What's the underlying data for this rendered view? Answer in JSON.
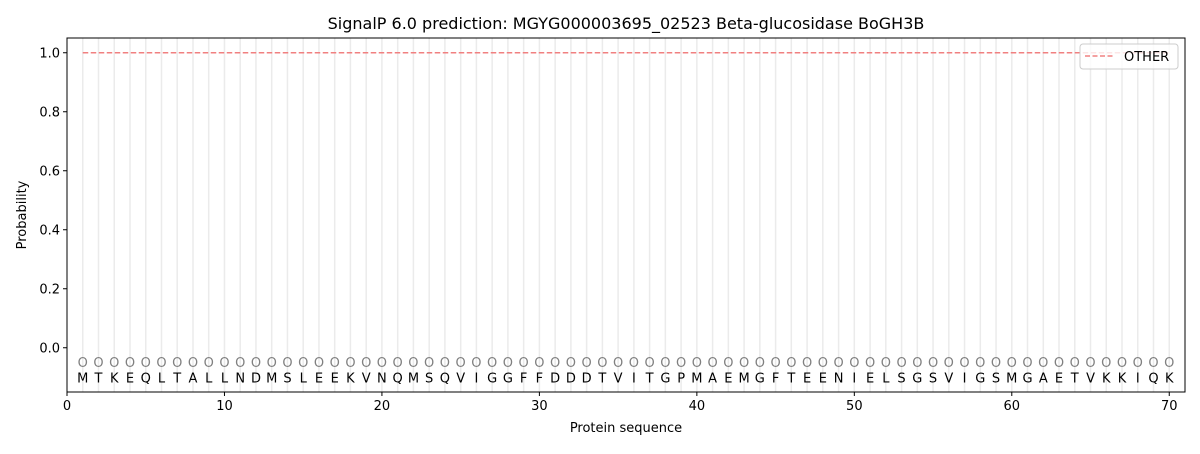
{
  "chart_data": {
    "type": "line",
    "title": "SignalP 6.0 prediction: MGYG000003695_02523 Beta-glucosidase BoGH3B",
    "xlabel": "Protein sequence",
    "ylabel": "Probability",
    "xlim": [
      0,
      71
    ],
    "ylim": [
      -0.15,
      1.05
    ],
    "xticks": [
      0,
      10,
      20,
      30,
      40,
      50,
      60,
      70
    ],
    "yticks": [
      0.0,
      0.2,
      0.4,
      0.6,
      0.8,
      1.0
    ],
    "ytick_labels": [
      "0.0",
      "0.2",
      "0.4",
      "0.6",
      "0.8",
      "1.0"
    ],
    "grid": "vertical per residue",
    "legend_placement": "top-right",
    "sequence": [
      "M",
      "T",
      "K",
      "E",
      "Q",
      "L",
      "T",
      "A",
      "L",
      "L",
      "N",
      "D",
      "M",
      "S",
      "L",
      "E",
      "E",
      "K",
      "V",
      "N",
      "Q",
      "M",
      "S",
      "Q",
      "V",
      "I",
      "G",
      "G",
      "F",
      "F",
      "D",
      "D",
      "D",
      "T",
      "V",
      "I",
      "T",
      "G",
      "P",
      "M",
      "A",
      "E",
      "M",
      "G",
      "F",
      "T",
      "E",
      "E",
      "N",
      "I",
      "E",
      "L",
      "S",
      "G",
      "S",
      "V",
      "I",
      "G",
      "S",
      "M",
      "G",
      "A",
      "E",
      "T",
      "V",
      "K",
      "K",
      "I",
      "Q",
      "K"
    ],
    "region_label": "O",
    "region_marker_y": -0.05,
    "series": [
      {
        "name": "OTHER",
        "color": "#f08080",
        "style": "dashed",
        "x_start": 1,
        "x_end": 70,
        "value": 1.0
      }
    ]
  }
}
